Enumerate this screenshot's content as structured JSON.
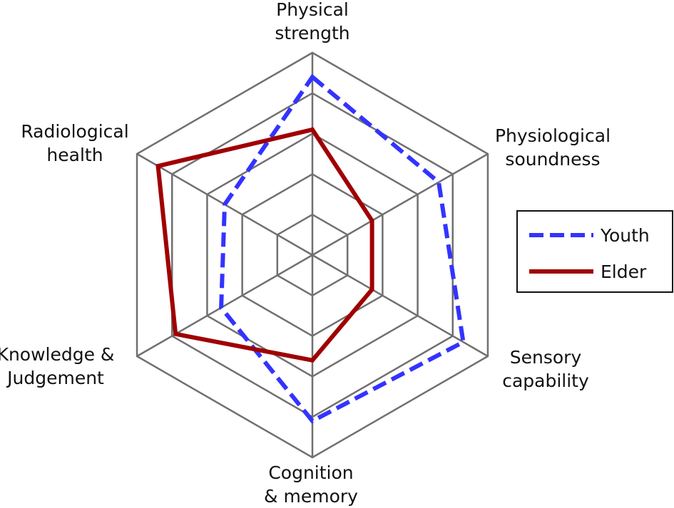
{
  "chart_data": {
    "type": "radar",
    "title": "",
    "axes": [
      "Physical strength",
      "Physiological soundness",
      "Sensory capability",
      "Cognition & memory",
      "Knowledge & Judgement",
      "Radiological health"
    ],
    "axis_label_lines": [
      [
        "Physical",
        "strength"
      ],
      [
        "Physiological",
        "soundness"
      ],
      [
        "Sensory",
        "capability"
      ],
      [
        "Cognition",
        "& memory"
      ],
      [
        "Knowledge &",
        "Judgement"
      ],
      [
        "Radiological",
        "health"
      ]
    ],
    "range": [
      0,
      5
    ],
    "rings": 5,
    "grid": true,
    "legend_position": "right",
    "series": [
      {
        "name": "Youth",
        "color": "#3333ff",
        "style": "dashed",
        "values": [
          4.4,
          3.6,
          4.3,
          4.1,
          2.6,
          2.5
        ]
      },
      {
        "name": "Elder",
        "color": "#a00000",
        "style": "solid",
        "values": [
          3.1,
          1.7,
          1.7,
          2.6,
          3.9,
          4.4
        ]
      }
    ]
  }
}
